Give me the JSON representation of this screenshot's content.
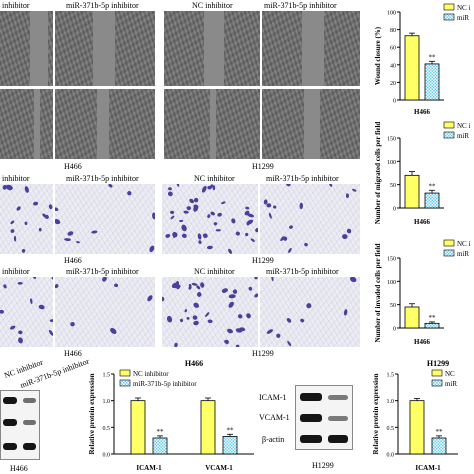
{
  "wound_panel": {
    "labels": [
      "inhibitor",
      "miR-371b-5p inhibitor",
      "NC inhibitor",
      "miR-371b-5p inhibitor"
    ],
    "cell_lines": [
      "H466",
      "H1299"
    ]
  },
  "migration_panel": {
    "labels": [
      "inhibitor",
      "miR-371b-5p inhibitor",
      "NC inhibitor",
      "miR-371b-5p inhibitor"
    ],
    "cell_lines": [
      "H466",
      "H1299"
    ]
  },
  "invasion_panel": {
    "labels": [
      "inhibitor",
      "miR-371b-5p inhibitor",
      "NC inhibitor",
      "miR-371b-5p inhibitor"
    ],
    "cell_lines": [
      "H466",
      "H1299"
    ]
  },
  "western_left": {
    "lanes": [
      "NC inhibitor",
      "miR-371b-5p inhibitor"
    ],
    "cell_line": "H466"
  },
  "western_right": {
    "proteins": [
      "ICAM-1",
      "VCAM-1",
      "β-actin"
    ],
    "cell_line": "H1299"
  },
  "colors": {
    "nc": "#ffff66",
    "inhibitor": "#66ccee",
    "outline": "#000000",
    "stain": "#4a3f9a"
  },
  "chart_data": [
    {
      "type": "bar",
      "title": "",
      "categories": [
        "H466"
      ],
      "series": [
        {
          "name": "NC i",
          "values": [
            73
          ],
          "error": [
            3
          ]
        },
        {
          "name": "miR",
          "values": [
            41
          ],
          "error": [
            3
          ]
        }
      ],
      "ylabel": "Wound closure (%)",
      "ylim": [
        0,
        100
      ],
      "yticks": [
        "0",
        "20",
        "40",
        "60",
        "80",
        "100"
      ],
      "annotations": [
        "**"
      ]
    },
    {
      "type": "bar",
      "title": "",
      "categories": [
        "H466"
      ],
      "series": [
        {
          "name": "NC i",
          "values": [
            70
          ],
          "error": [
            8
          ]
        },
        {
          "name": "miR",
          "values": [
            32
          ],
          "error": [
            6
          ]
        }
      ],
      "ylabel": "Number of migrated cells per field",
      "ylim": [
        0,
        150
      ],
      "yticks": [
        "0",
        "50",
        "100",
        "150"
      ],
      "annotations": [
        "**"
      ]
    },
    {
      "type": "bar",
      "title": "",
      "categories": [
        "H466"
      ],
      "series": [
        {
          "name": "NC i",
          "values": [
            45
          ],
          "error": [
            7
          ]
        },
        {
          "name": "miR",
          "values": [
            10
          ],
          "error": [
            3
          ]
        }
      ],
      "ylabel": "Number of invaded cells per field",
      "ylim": [
        0,
        150
      ],
      "yticks": [
        "0",
        "50",
        "100",
        "150"
      ],
      "annotations": [
        "**"
      ]
    },
    {
      "type": "bar",
      "title": "H466",
      "categories": [
        "ICAM-1",
        "VCAM-1"
      ],
      "series": [
        {
          "name": "NC inhibitor",
          "values": [
            1.0,
            1.0
          ],
          "error": [
            0.05,
            0.05
          ]
        },
        {
          "name": "miR-371b-5p inhibitor",
          "values": [
            0.3,
            0.33
          ],
          "error": [
            0.04,
            0.04
          ]
        }
      ],
      "ylabel": "Relative protein expression",
      "ylim": [
        0,
        1.5
      ],
      "yticks": [
        "0.0",
        "0.5",
        "1.0",
        "1.5"
      ],
      "annotations": [
        "**",
        "**"
      ]
    },
    {
      "type": "bar",
      "title": "H1299",
      "categories": [
        "ICAM-1"
      ],
      "series": [
        {
          "name": "NC",
          "values": [
            1.0
          ],
          "error": [
            0.04
          ]
        },
        {
          "name": "miR",
          "values": [
            0.3
          ],
          "error": [
            0.04
          ]
        }
      ],
      "ylabel": "Relative protein expression",
      "ylim": [
        0,
        1.5
      ],
      "yticks": [
        "0.0",
        "0.5",
        "1.0",
        "1.5"
      ],
      "annotations": [
        "**"
      ]
    }
  ]
}
